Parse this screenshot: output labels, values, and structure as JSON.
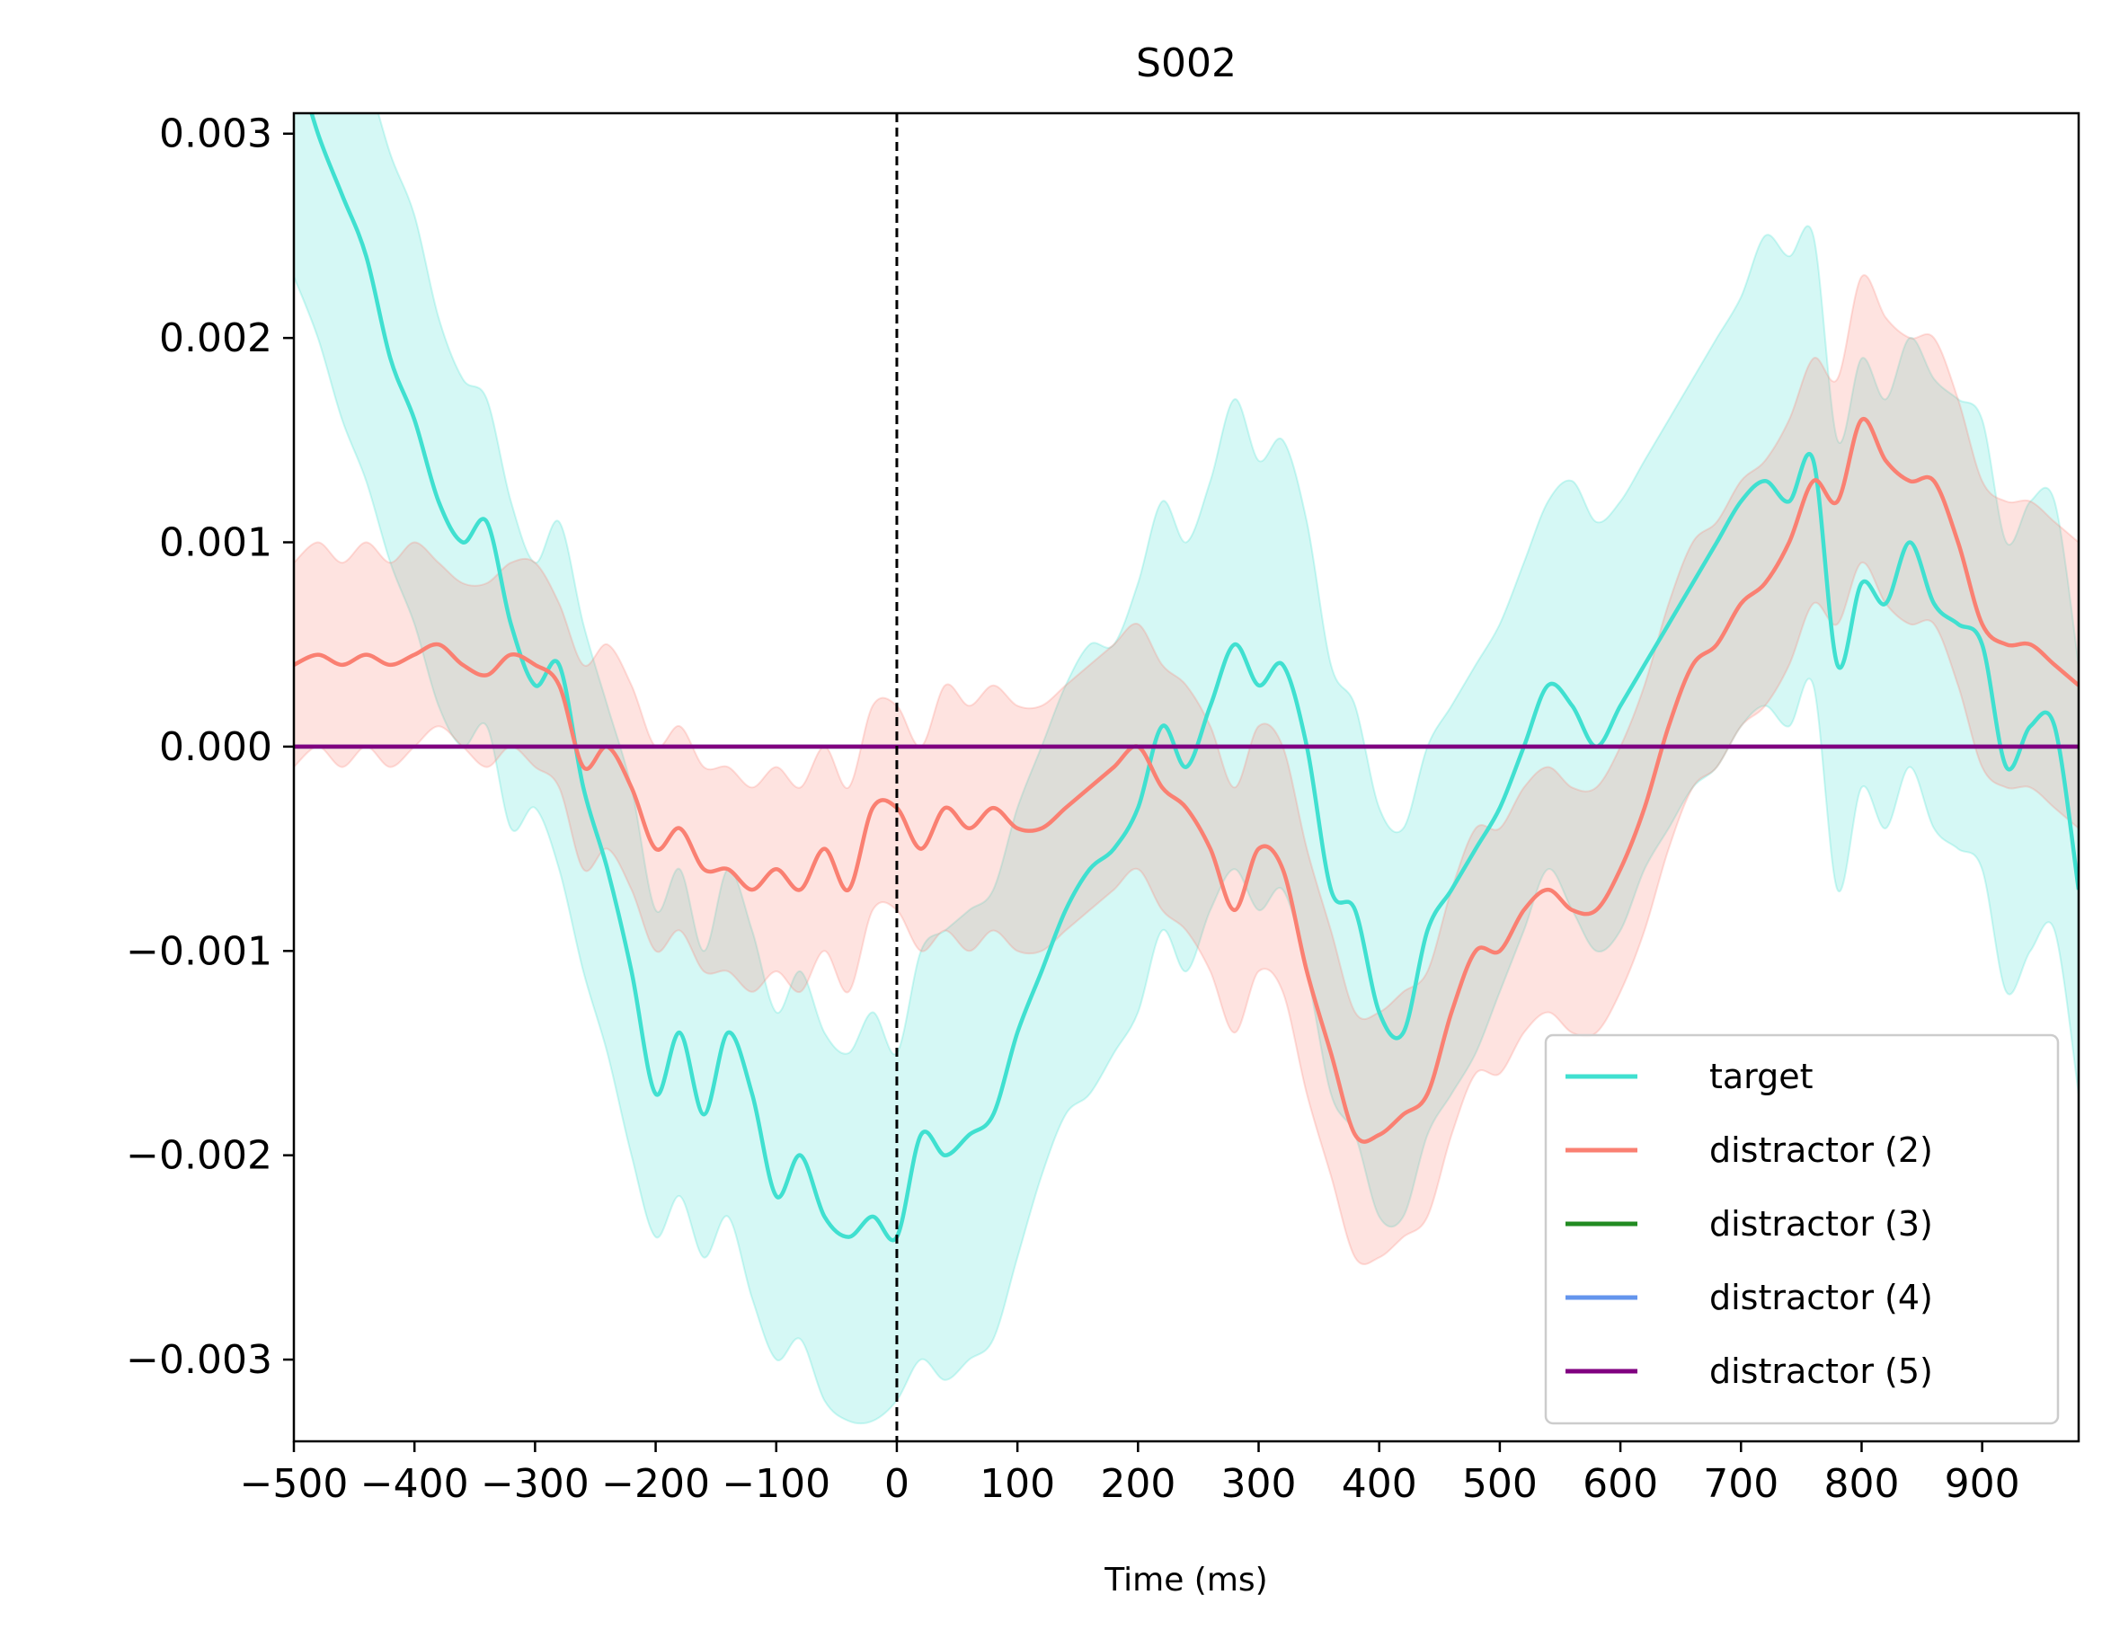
{
  "chart_data": {
    "type": "line",
    "title": "S002",
    "xlabel": "Time (ms)",
    "ylabel": "",
    "xlim": [
      -500,
      980
    ],
    "ylim": [
      -0.0034,
      0.0031
    ],
    "xticks": [
      -500,
      -400,
      -300,
      -200,
      -100,
      0,
      100,
      200,
      300,
      400,
      500,
      600,
      700,
      800,
      900
    ],
    "xtick_labels": [
      "−500",
      "−400",
      "−300",
      "−200",
      "−100",
      "0",
      "100",
      "200",
      "300",
      "400",
      "500",
      "600",
      "700",
      "800",
      "900"
    ],
    "yticks": [
      -0.003,
      -0.002,
      -0.001,
      0.0,
      0.001,
      0.002,
      0.003
    ],
    "ytick_labels": [
      "−0.003",
      "−0.002",
      "−0.001",
      "0.000",
      "0.001",
      "0.002",
      "0.003"
    ],
    "grid": false,
    "legend_position": "lower-right",
    "vline_x": 0,
    "series": [
      {
        "name": "target",
        "color": "#40e0d0",
        "x": [
          -500,
          -480,
          -460,
          -440,
          -420,
          -400,
          -380,
          -360,
          -340,
          -320,
          -300,
          -280,
          -260,
          -240,
          -220,
          -200,
          -180,
          -160,
          -140,
          -120,
          -100,
          -80,
          -60,
          -40,
          -20,
          0,
          20,
          40,
          60,
          80,
          100,
          120,
          140,
          160,
          180,
          200,
          220,
          240,
          260,
          280,
          300,
          320,
          340,
          360,
          380,
          400,
          420,
          440,
          460,
          480,
          500,
          520,
          540,
          560,
          580,
          600,
          620,
          640,
          660,
          680,
          700,
          720,
          740,
          760,
          780,
          800,
          820,
          840,
          860,
          880,
          900,
          920,
          940,
          960,
          980
        ],
        "y": [
          0.0034,
          0.003,
          0.0027,
          0.0024,
          0.0019,
          0.0016,
          0.0012,
          0.001,
          0.0011,
          0.0006,
          0.0003,
          0.0004,
          -0.0002,
          -0.0006,
          -0.0011,
          -0.0017,
          -0.0014,
          -0.0018,
          -0.0014,
          -0.0017,
          -0.0022,
          -0.002,
          -0.0023,
          -0.0024,
          -0.0023,
          -0.0024,
          -0.0019,
          -0.002,
          -0.0019,
          -0.0018,
          -0.0014,
          -0.0011,
          -0.0008,
          -0.0006,
          -0.0005,
          -0.0003,
          0.0001,
          -0.0001,
          0.0002,
          0.0005,
          0.0003,
          0.0004,
          0.0,
          -0.0007,
          -0.0008,
          -0.0013,
          -0.0014,
          -0.0009,
          -0.0007,
          -0.0005,
          -0.0003,
          0.0,
          0.0003,
          0.0002,
          0.0,
          0.0002,
          0.0004,
          0.0006,
          0.0008,
          0.001,
          0.0012,
          0.0013,
          0.0012,
          0.0014,
          0.0004,
          0.0008,
          0.0007,
          0.001,
          0.0007,
          0.0006,
          0.0005,
          -0.0001,
          0.0001,
          0.0001,
          -0.0007
        ],
        "ci_lower": [
          0.0023,
          0.002,
          0.0016,
          0.0013,
          0.0009,
          0.0006,
          0.0002,
          0.0,
          0.0001,
          -0.0004,
          -0.0003,
          -0.0006,
          -0.0011,
          -0.0015,
          -0.002,
          -0.0024,
          -0.0022,
          -0.0025,
          -0.0023,
          -0.0027,
          -0.003,
          -0.0029,
          -0.0032,
          -0.0033,
          -0.0033,
          -0.0032,
          -0.003,
          -0.0031,
          -0.003,
          -0.0029,
          -0.0025,
          -0.0021,
          -0.0018,
          -0.0017,
          -0.0015,
          -0.0013,
          -0.0009,
          -0.0011,
          -0.0008,
          -0.0006,
          -0.0008,
          -0.0007,
          -0.0011,
          -0.0017,
          -0.0019,
          -0.0023,
          -0.0023,
          -0.0019,
          -0.0017,
          -0.0015,
          -0.0012,
          -0.0009,
          -0.0006,
          -0.0008,
          -0.001,
          -0.0009,
          -0.0006,
          -0.0004,
          -0.0002,
          -0.0001,
          0.0001,
          0.0002,
          0.0001,
          0.0003,
          -0.0007,
          -0.0002,
          -0.0004,
          -0.0001,
          -0.0004,
          -0.0005,
          -0.0006,
          -0.0012,
          -0.001,
          -0.0009,
          -0.0017
        ],
        "ci_upper": [
          0.0043,
          0.0041,
          0.0036,
          0.0033,
          0.0029,
          0.0026,
          0.0021,
          0.0018,
          0.0017,
          0.0012,
          0.0009,
          0.0011,
          0.0006,
          0.0002,
          -0.0002,
          -0.0008,
          -0.0006,
          -0.001,
          -0.0006,
          -0.0009,
          -0.0013,
          -0.0011,
          -0.0014,
          -0.0015,
          -0.0013,
          -0.0015,
          -0.001,
          -0.0009,
          -0.0008,
          -0.0007,
          -0.0003,
          0.0,
          0.0003,
          0.0005,
          0.0005,
          0.0008,
          0.0012,
          0.001,
          0.0013,
          0.0017,
          0.0014,
          0.0015,
          0.0011,
          0.0004,
          0.0002,
          -0.0003,
          -0.0004,
          0.0,
          0.0002,
          0.0004,
          0.0006,
          0.0009,
          0.0012,
          0.0013,
          0.0011,
          0.0012,
          0.0014,
          0.0016,
          0.0018,
          0.002,
          0.0022,
          0.0025,
          0.0024,
          0.0025,
          0.0015,
          0.0019,
          0.0017,
          0.002,
          0.0018,
          0.0017,
          0.0016,
          0.001,
          0.0012,
          0.0012,
          0.0004
        ]
      },
      {
        "name": "distractor (2)",
        "color": "#fa8072",
        "x": [
          -500,
          -480,
          -460,
          -440,
          -420,
          -400,
          -380,
          -360,
          -340,
          -320,
          -300,
          -280,
          -260,
          -240,
          -220,
          -200,
          -180,
          -160,
          -140,
          -120,
          -100,
          -80,
          -60,
          -40,
          -20,
          0,
          20,
          40,
          60,
          80,
          100,
          120,
          140,
          160,
          180,
          200,
          220,
          240,
          260,
          280,
          300,
          320,
          340,
          360,
          380,
          400,
          420,
          440,
          460,
          480,
          500,
          520,
          540,
          560,
          580,
          600,
          620,
          640,
          660,
          680,
          700,
          720,
          740,
          760,
          780,
          800,
          820,
          840,
          860,
          880,
          900,
          920,
          940,
          960,
          980
        ],
        "y": [
          0.0004,
          0.00045,
          0.0004,
          0.00045,
          0.0004,
          0.00045,
          0.0005,
          0.0004,
          0.00035,
          0.00045,
          0.0004,
          0.0003,
          -0.0001,
          0.0,
          -0.0002,
          -0.0005,
          -0.0004,
          -0.0006,
          -0.0006,
          -0.0007,
          -0.0006,
          -0.0007,
          -0.0005,
          -0.0007,
          -0.0003,
          -0.0003,
          -0.0005,
          -0.0003,
          -0.0004,
          -0.0003,
          -0.0004,
          -0.0004,
          -0.0003,
          -0.0002,
          -0.0001,
          0.0,
          -0.0002,
          -0.0003,
          -0.0005,
          -0.0008,
          -0.0005,
          -0.0006,
          -0.0011,
          -0.0015,
          -0.0019,
          -0.0019,
          -0.0018,
          -0.0017,
          -0.0013,
          -0.001,
          -0.001,
          -0.0008,
          -0.0007,
          -0.0008,
          -0.0008,
          -0.0006,
          -0.0003,
          0.0001,
          0.0004,
          0.0005,
          0.0007,
          0.0008,
          0.001,
          0.0013,
          0.0012,
          0.0016,
          0.0014,
          0.0013,
          0.0013,
          0.001,
          0.0006,
          0.0005,
          0.0005,
          0.0004,
          0.0003
        ],
        "ci_lower": [
          -0.0001,
          0.0,
          -0.0001,
          0.0,
          -0.0001,
          0.0,
          0.0001,
          0.0,
          -0.0001,
          0.0,
          -0.0001,
          -0.0002,
          -0.0006,
          -0.0005,
          -0.0007,
          -0.001,
          -0.0009,
          -0.0011,
          -0.0011,
          -0.0012,
          -0.0011,
          -0.0012,
          -0.001,
          -0.0012,
          -0.0008,
          -0.0008,
          -0.001,
          -0.0009,
          -0.001,
          -0.0009,
          -0.001,
          -0.001,
          -0.0009,
          -0.0008,
          -0.0007,
          -0.0006,
          -0.0008,
          -0.0009,
          -0.0011,
          -0.0014,
          -0.0011,
          -0.0012,
          -0.0017,
          -0.0021,
          -0.0025,
          -0.0025,
          -0.0024,
          -0.0023,
          -0.0019,
          -0.0016,
          -0.0016,
          -0.0014,
          -0.0013,
          -0.0014,
          -0.0014,
          -0.0012,
          -0.0009,
          -0.0005,
          -0.0002,
          -0.0001,
          0.0001,
          0.0002,
          0.0004,
          0.0007,
          0.0006,
          0.0009,
          0.0007,
          0.0006,
          0.0006,
          0.0003,
          -0.0001,
          -0.0002,
          -0.0002,
          -0.0003,
          -0.0004
        ],
        "ci_upper": [
          0.0009,
          0.001,
          0.0009,
          0.001,
          0.0009,
          0.001,
          0.0009,
          0.0008,
          0.0008,
          0.0009,
          0.0009,
          0.0007,
          0.0004,
          0.0005,
          0.0003,
          0.0,
          0.0001,
          -0.0001,
          -0.0001,
          -0.0002,
          -0.0001,
          -0.0002,
          0.0,
          -0.0002,
          0.0002,
          0.0002,
          0.0,
          0.0003,
          0.0002,
          0.0003,
          0.0002,
          0.0002,
          0.0003,
          0.0004,
          0.0005,
          0.0006,
          0.0004,
          0.0003,
          0.0001,
          -0.0002,
          0.0001,
          0.0,
          -0.0005,
          -0.0009,
          -0.0013,
          -0.0013,
          -0.0012,
          -0.0011,
          -0.0007,
          -0.0004,
          -0.0004,
          -0.0002,
          -0.0001,
          -0.0002,
          -0.0002,
          0.0,
          0.0003,
          0.0007,
          0.001,
          0.0011,
          0.0013,
          0.0014,
          0.0016,
          0.0019,
          0.0018,
          0.0023,
          0.0021,
          0.002,
          0.002,
          0.0017,
          0.0013,
          0.0012,
          0.0012,
          0.0011,
          0.001
        ]
      },
      {
        "name": "distractor (3)",
        "color": "#228b22",
        "x": [
          -500,
          980
        ],
        "y": [
          0,
          0
        ]
      },
      {
        "name": "distractor (4)",
        "color": "#6495ed",
        "x": [
          -500,
          980
        ],
        "y": [
          0,
          0
        ]
      },
      {
        "name": "distractor (5)",
        "color": "#800080",
        "x": [
          -500,
          980
        ],
        "y": [
          0,
          0
        ]
      }
    ]
  }
}
